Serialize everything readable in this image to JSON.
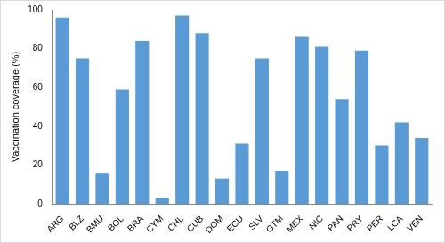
{
  "chart_data": {
    "type": "bar",
    "y_label": "Vaccination coverage (%)",
    "categories": [
      "ARG",
      "BLZ",
      "BMU",
      "BOL",
      "BRA",
      "CYM",
      "CHL",
      "CUB",
      "DOM",
      "ECU",
      "SLV",
      "GTM",
      "MEX",
      "NIC",
      "PAN",
      "PRY",
      "PER",
      "LCA",
      "VEN"
    ],
    "values": [
      96,
      75,
      16,
      59,
      84,
      3,
      97,
      88,
      13,
      31,
      75,
      17,
      86,
      81,
      54,
      79,
      30,
      42,
      34
    ],
    "color": "#5b9bd5",
    "ylim": [
      0,
      100
    ],
    "yticks": [
      0,
      20,
      40,
      60,
      80,
      100
    ],
    "grid": false
  }
}
